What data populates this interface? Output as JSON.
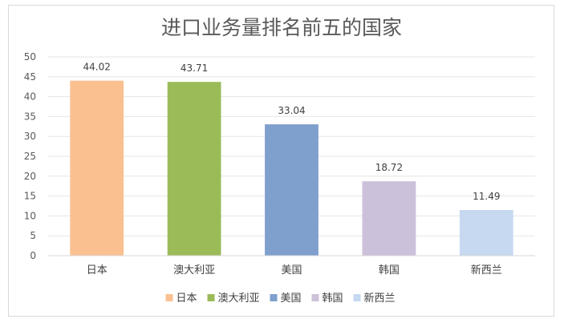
{
  "chart_data": {
    "type": "bar",
    "title": "进口业务量排名前五的国家",
    "categories": [
      "日本",
      "澳大利亚",
      "美国",
      "韩国",
      "新西兰"
    ],
    "values": [
      44.02,
      43.71,
      33.04,
      18.72,
      11.49
    ],
    "data_labels": [
      "44.02",
      "43.71",
      "33.04",
      "18.72",
      "11.49"
    ],
    "colors": [
      "#fac090",
      "#9bbb59",
      "#7f9fcd",
      "#ccc1da",
      "#c6d9f1"
    ],
    "ylim": [
      0,
      50
    ],
    "yticks": [
      "0",
      "5",
      "10",
      "15",
      "20",
      "25",
      "30",
      "35",
      "40",
      "45",
      "50"
    ],
    "xlabel": "",
    "ylabel": "",
    "grid": true,
    "legend_position": "bottom",
    "legend": [
      "日本",
      "澳大利亚",
      "美国",
      "韩国",
      "新西兰"
    ]
  }
}
